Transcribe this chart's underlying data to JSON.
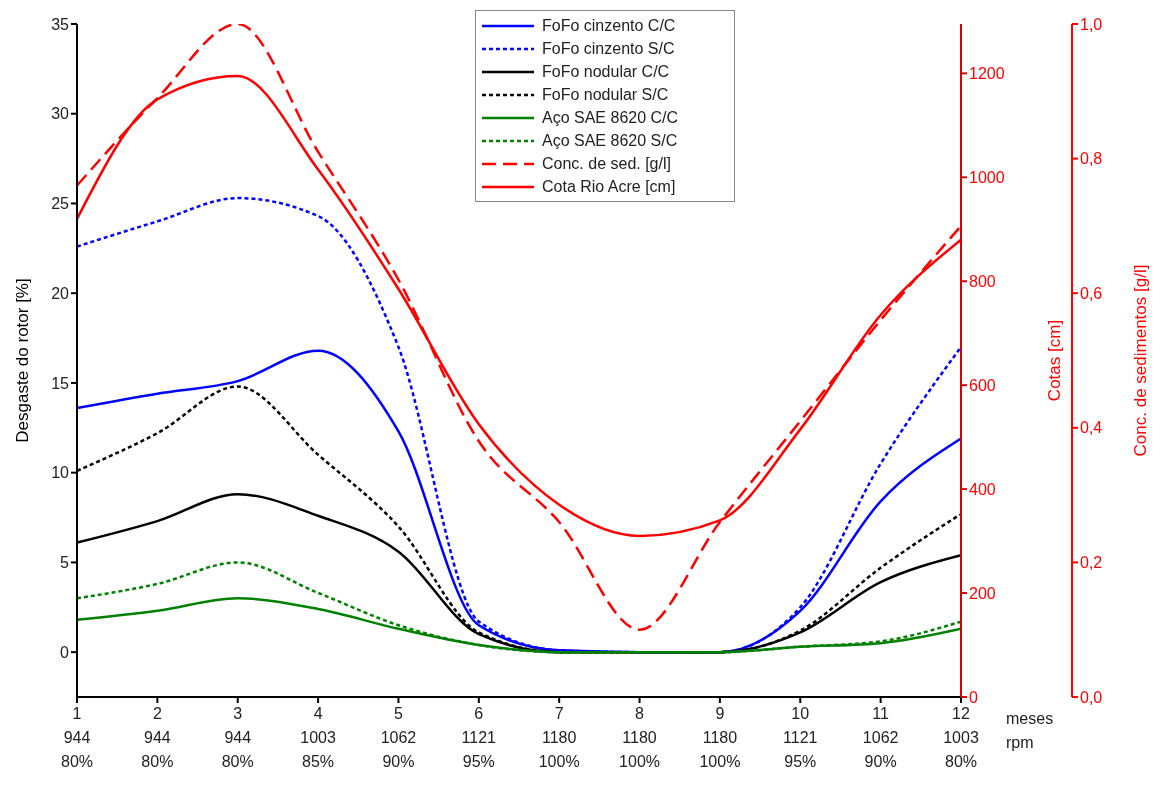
{
  "chart_data": {
    "type": "line",
    "xlabel": "meses",
    "ylabel": "Desgaste do rotor [%]",
    "y2label": "Cotas [cm]",
    "y3label": "Conc. de sedimentos [g/l]",
    "annotations": [
      "rpm"
    ],
    "categories": [
      "1\n944\n80%",
      "2\n944\n80%",
      "3\n944\n80%",
      "4\n1003\n85%",
      "5\n1062\n90%",
      "6\n1121\n95%",
      "7\n1180\n100%",
      "8\n1180\n100%",
      "9\n1180\n100%",
      "10\n1121\n95%",
      "11\n1062\n90%",
      "12\n1003\n80%"
    ],
    "ylim": [
      -2.5,
      35
    ],
    "yticks": [
      0,
      5,
      10,
      15,
      20,
      25,
      30,
      35
    ],
    "y2lim": [
      0,
      1295
    ],
    "y2ticks": [
      0,
      200,
      400,
      600,
      800,
      1000,
      1200
    ],
    "y3lim": [
      0,
      1
    ],
    "y3ticks": [
      {
        "value": 0,
        "label": "0,0"
      },
      {
        "value": 0.2,
        "label": "0,2"
      },
      {
        "value": 0.4,
        "label": "0,4"
      },
      {
        "value": 0.6,
        "label": "0,6"
      },
      {
        "value": 0.8,
        "label": "0,8"
      },
      {
        "value": 1,
        "label": "1,0"
      }
    ],
    "grid": false,
    "legend": "top",
    "marker": "none",
    "series": [
      {
        "name": "FoFo cinzento C/C",
        "color": "#0000ff",
        "line_style": "solid",
        "values": [
          13.6,
          14.4,
          15.1,
          16.8,
          12.3,
          1.5,
          0.1,
          0,
          0,
          2.3,
          8.4,
          11.9
        ]
      },
      {
        "name": "FoFo cinzento S/C",
        "color": "#0000ff",
        "line_style": "dotted",
        "values": [
          22.6,
          24,
          25.3,
          24.3,
          17,
          1.7,
          0.1,
          0,
          0,
          2.5,
          10.5,
          17
        ]
      },
      {
        "name": "FoFo nodular C/C",
        "color": "#000000",
        "line_style": "solid",
        "values": [
          6.1,
          7.3,
          8.8,
          7.6,
          5.6,
          1,
          0,
          0,
          0,
          1.1,
          3.9,
          5.4
        ]
      },
      {
        "name": "FoFo nodular S/C",
        "color": "#000000",
        "line_style": "dotted",
        "values": [
          10.1,
          12.2,
          14.8,
          11,
          7,
          1.1,
          0,
          0,
          0,
          1.2,
          4.7,
          7.7
        ]
      },
      {
        "name": "Aço SAE 8620 C/C",
        "color": "#008000",
        "line_style": "solid",
        "values": [
          1.8,
          2.3,
          3,
          2.4,
          1.3,
          0.4,
          0,
          0,
          0,
          0.3,
          0.5,
          1.3
        ]
      },
      {
        "name": "Aço SAE 8620 S/C",
        "color": "#008000",
        "line_style": "dotted",
        "values": [
          3,
          3.8,
          5,
          3.3,
          1.5,
          0.4,
          0,
          0,
          0,
          0.3,
          0.6,
          1.7
        ]
      },
      {
        "name": "Conc. de sed. [g/l]",
        "color": "#ff0000",
        "line_style": "dashed",
        "axis": "y3",
        "values": [
          0.76,
          0.89,
          1.0,
          0.81,
          0.62,
          0.38,
          0.26,
          0.1,
          0.26,
          0.41,
          0.56,
          0.7
        ]
      },
      {
        "name": "Cota Rio Acre [cm]",
        "color": "#ff0000",
        "line_style": "solid",
        "axis": "y2",
        "values": [
          920,
          1150,
          1195,
          1015,
          785,
          525,
          370,
          310,
          340,
          515,
          735,
          880
        ]
      }
    ]
  }
}
